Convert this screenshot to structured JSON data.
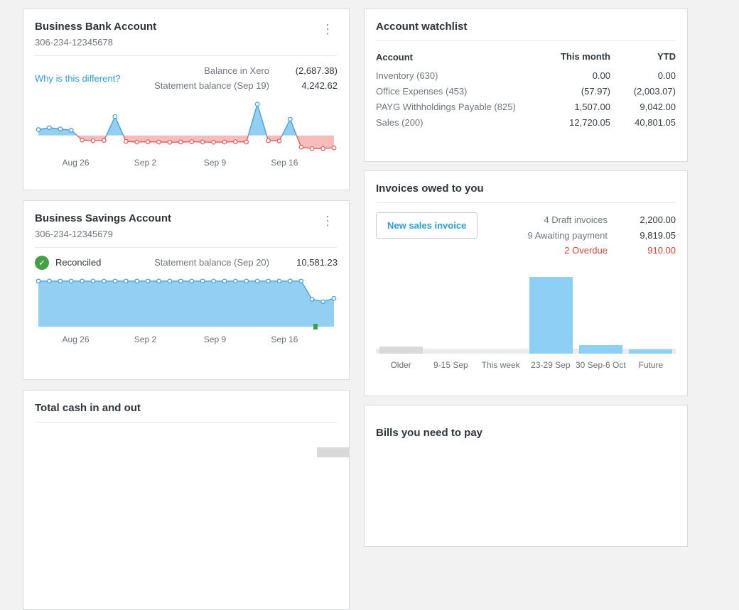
{
  "icons": {
    "kebab_menu": "⋮",
    "check": "✓"
  },
  "accent": {
    "link_blue": "#2a9fd8",
    "overdue_red": "#d0463c",
    "reconciled_green": "#43a047"
  },
  "bank_account_card": {
    "title": "Business Bank Account",
    "account_number": "306-234-12345678",
    "why_link": "Why is this different?",
    "rows": [
      {
        "label": "Balance in Xero",
        "value": "(2,687.38)"
      },
      {
        "label": "Statement balance (Sep 19)",
        "value": "4,242.62"
      }
    ]
  },
  "savings_account_card": {
    "title": "Business Savings Account",
    "account_number": "306-234-12345679",
    "reconciled_label": "Reconciled",
    "statement_label": "Statement balance (Sep 20)",
    "statement_value": "10,581.23"
  },
  "total_cash_card": {
    "title": "Total cash in and out"
  },
  "watchlist_card": {
    "title": "Account watchlist",
    "columns": [
      "Account",
      "This month",
      "YTD"
    ],
    "rows": [
      {
        "account": "Inventory (630)",
        "this_month": "0.00",
        "ytd": "0.00"
      },
      {
        "account": "Office Expenses (453)",
        "this_month": "(57.97)",
        "ytd": "(2,003.07)"
      },
      {
        "account": "PAYG Withholdings Payable (825)",
        "this_month": "1,507.00",
        "ytd": "9,042.00"
      },
      {
        "account": "Sales (200)",
        "this_month": "12,720.05",
        "ytd": "40,801.05"
      }
    ]
  },
  "invoices_card": {
    "title": "Invoices owed to you",
    "new_invoice_button": "New sales invoice",
    "summary": [
      {
        "label": "4 Draft invoices",
        "value": "2,200.00"
      },
      {
        "label": "9 Awaiting payment",
        "value": "9,819.05"
      },
      {
        "label": "2 Overdue",
        "value": "910.00"
      }
    ]
  },
  "bills_card": {
    "title": "Bills you need to pay"
  },
  "chart_data": [
    {
      "id": "bank-balance-sparkline",
      "type": "area",
      "x_ticks": [
        "Aug 26",
        "Sep 2",
        "Sep 9",
        "Sep 16"
      ],
      "values": [
        0.45,
        0.6,
        0.5,
        0.4,
        -0.35,
        -0.4,
        -0.38,
        1.45,
        -0.45,
        -0.5,
        -0.48,
        -0.5,
        -0.52,
        -0.5,
        -0.48,
        -0.5,
        -0.52,
        -0.5,
        -0.48,
        -0.5,
        2.4,
        -0.4,
        -0.42,
        1.25,
        -0.9,
        -1.0,
        -1.0,
        -0.95
      ],
      "ymax": 2.6,
      "ymin": -1.1,
      "fill_pos": "#92cff2",
      "fill_neg": "#f7bcbc",
      "stroke_pos": "#47a0d8",
      "stroke_neg": "#e06060",
      "green_tick": false
    },
    {
      "id": "savings-balance-sparkline",
      "type": "area",
      "x_ticks": [
        "Aug 26",
        "Sep 2",
        "Sep 9",
        "Sep 16"
      ],
      "values": [
        1,
        1,
        1,
        1,
        1,
        1,
        1,
        1,
        1,
        1,
        1,
        1,
        1,
        1,
        1,
        1,
        1,
        1,
        1,
        1,
        1,
        1,
        1,
        1,
        1,
        0.6,
        0.55,
        0.62
      ],
      "ymax": 1.06,
      "ymin": 0,
      "fill_pos": "#92cff2",
      "fill_neg": "#f7bcbc",
      "stroke_pos": "#47a0d8",
      "stroke_neg": "#e06060",
      "green_tick": true
    },
    {
      "id": "invoices-owed-bar-chart",
      "type": "bar",
      "categories": [
        "Older",
        "9-15 Sep",
        "This week",
        "23-29 Sep",
        "30 Sep-6 Oct",
        "Future"
      ],
      "heights_pct": [
        9,
        0,
        0,
        100,
        11,
        5
      ],
      "colors": [
        "#d9d9d9",
        "#8ed0f5",
        "#8ed0f5",
        "#8ed0f5",
        "#8ed0f5",
        "#8ed0f5"
      ]
    }
  ]
}
